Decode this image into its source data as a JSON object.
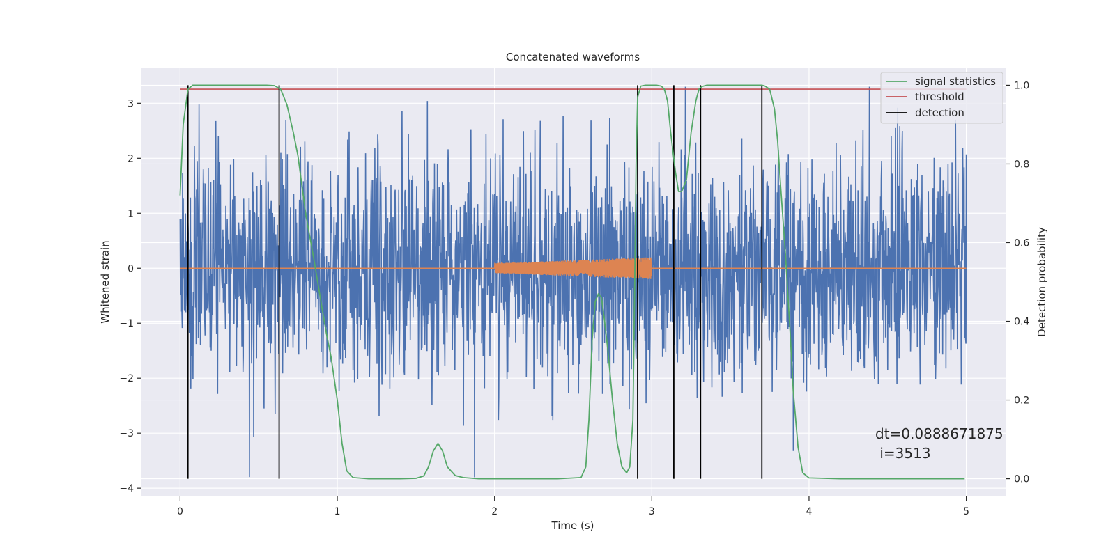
{
  "chart_data": {
    "type": "line",
    "title": "Concatenated waveforms",
    "xlabel": "Time (s)",
    "ylabel": "Whitened strain",
    "y2label": "Detection probability",
    "xlim": [
      -0.25,
      5.25
    ],
    "ylim": [
      -4.15,
      3.65
    ],
    "y2lim": [
      -0.045,
      1.045
    ],
    "xticks": [
      0,
      1,
      2,
      3,
      4,
      5
    ],
    "yticks": [
      -4,
      -3,
      -2,
      -1,
      0,
      1,
      2,
      3
    ],
    "y2ticks": [
      0.0,
      0.2,
      0.4,
      0.6,
      0.8,
      1.0
    ],
    "grid": true,
    "legend_position": "top-right",
    "legend": [
      {
        "label": "signal statistics",
        "color": "#55a868"
      },
      {
        "label": "threshold",
        "color": "#c44e52"
      },
      {
        "label": "detection",
        "color": "#000000"
      }
    ],
    "colors": {
      "noise": "#4c72b0",
      "injected_signal": "#dd8452",
      "signal_statistics": "#55a868",
      "threshold": "#c44e52",
      "detection": "#000000",
      "axes_background": "#eaeaf2"
    },
    "series": [
      {
        "name": "",
        "description": "whitened strain noise (0 to 5 s, amplitude about ±3)"
      },
      {
        "name": "",
        "chirp": {
          "t_start": 2.0,
          "t_end": 3.0,
          "amp_start": 0.09,
          "amp_end": 0.2
        }
      },
      {
        "name": "signal statistics",
        "axis": "right",
        "x": [
          0.0,
          0.02,
          0.05,
          0.08,
          0.15,
          0.3,
          0.45,
          0.55,
          0.6,
          0.64,
          0.68,
          0.72,
          0.75,
          0.8,
          0.85,
          0.9,
          0.93,
          0.96,
          1.0,
          1.03,
          1.06,
          1.1,
          1.2,
          1.4,
          1.5,
          1.55,
          1.58,
          1.61,
          1.64,
          1.67,
          1.7,
          1.75,
          1.8,
          1.9,
          2.0,
          2.2,
          2.4,
          2.55,
          2.58,
          2.6,
          2.62,
          2.64,
          2.66,
          2.68,
          2.7,
          2.72,
          2.75,
          2.78,
          2.81,
          2.84,
          2.86,
          2.88,
          2.89,
          2.9,
          2.91,
          2.93,
          2.96,
          3.0,
          3.03,
          3.06,
          3.08,
          3.1,
          3.12,
          3.15,
          3.17,
          3.19,
          3.22,
          3.25,
          3.28,
          3.3,
          3.32,
          3.35,
          3.4,
          3.5,
          3.6,
          3.7,
          3.72,
          3.75,
          3.78,
          3.8,
          3.82,
          3.85,
          3.88,
          3.9,
          3.93,
          3.96,
          4.0,
          4.2,
          4.5,
          4.8,
          4.99
        ],
        "y": [
          0.72,
          0.9,
          0.99,
          1.0,
          1.0,
          1.0,
          1.0,
          1.0,
          0.999,
          0.99,
          0.95,
          0.88,
          0.82,
          0.67,
          0.56,
          0.44,
          0.37,
          0.31,
          0.2,
          0.09,
          0.02,
          0.003,
          0.0,
          0.0,
          0.001,
          0.007,
          0.03,
          0.07,
          0.09,
          0.07,
          0.03,
          0.008,
          0.003,
          0.0,
          0.0,
          0.0,
          0.0,
          0.003,
          0.03,
          0.15,
          0.35,
          0.45,
          0.47,
          0.46,
          0.4,
          0.33,
          0.2,
          0.09,
          0.03,
          0.015,
          0.03,
          0.15,
          0.45,
          0.8,
          0.97,
          0.998,
          1.0,
          1.0,
          1.0,
          0.998,
          0.99,
          0.96,
          0.88,
          0.78,
          0.73,
          0.73,
          0.76,
          0.88,
          0.96,
          0.99,
          0.997,
          1.0,
          1.0,
          1.0,
          1.0,
          1.0,
          0.998,
          0.99,
          0.94,
          0.86,
          0.74,
          0.57,
          0.37,
          0.22,
          0.08,
          0.015,
          0.002,
          0.0,
          0.0,
          0.0,
          0.0
        ]
      },
      {
        "name": "threshold",
        "axis": "right",
        "x": [
          0.0,
          5.0
        ],
        "y": [
          0.99,
          0.99
        ]
      },
      {
        "name": "detection",
        "axis": "right",
        "x_values": [
          0.05,
          0.63,
          2.91,
          3.14,
          3.31,
          3.7
        ],
        "y_range": [
          0.0,
          1.0
        ]
      }
    ],
    "annotation": {
      "lines": [
        "dt=0.0888671875",
        " i=3513"
      ],
      "x": 4.5,
      "y": -3.0
    }
  }
}
